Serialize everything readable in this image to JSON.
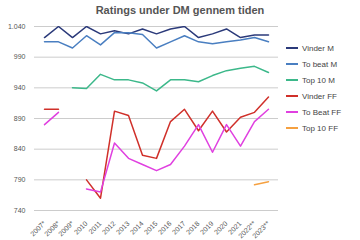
{
  "chart_data": {
    "type": "line",
    "title": "Ratings under DM gennem tiden",
    "categories": [
      "2007*",
      "2008*",
      "2009*",
      "2010",
      "2011",
      "2012",
      "2013",
      "2014",
      "2015",
      "2016",
      "2017",
      "2018",
      "2019",
      "2020",
      "2021",
      "2022**",
      "2023**"
    ],
    "series": [
      {
        "name": "Vinder M",
        "color": "#2b3a7a",
        "values": [
          1022,
          1040,
          1022,
          1040,
          1028,
          1033,
          1028,
          1036,
          1028,
          1036,
          1040,
          1022,
          1028,
          1036,
          1022,
          1026,
          1026
        ]
      },
      {
        "name": "To beat M",
        "color": "#4a7fc1",
        "values": [
          1015,
          1015,
          1005,
          1025,
          1010,
          1030,
          1030,
          1027,
          1005,
          1015,
          1025,
          1015,
          1012,
          1015,
          1018,
          1022,
          1015
        ]
      },
      {
        "name": "Top 10 M",
        "color": "#3cb88a",
        "values": [
          null,
          null,
          940,
          939,
          962,
          953,
          953,
          948,
          935,
          953,
          953,
          950,
          960,
          968,
          972,
          975,
          965
        ]
      },
      {
        "name": "Vinder FF",
        "color": "#d0302a",
        "values": [
          905,
          905,
          null,
          790,
          760,
          902,
          895,
          830,
          825,
          885,
          905,
          870,
          902,
          868,
          892,
          900,
          925
        ]
      },
      {
        "name": "To Beat FF",
        "color": "#e040e0",
        "values": [
          880,
          900,
          null,
          775,
          770,
          850,
          825,
          815,
          805,
          815,
          845,
          880,
          835,
          880,
          845,
          885,
          905
        ]
      },
      {
        "name": "Top 10 FF",
        "color": "#f5a040",
        "values": [
          null,
          null,
          null,
          null,
          null,
          null,
          null,
          null,
          null,
          null,
          null,
          null,
          null,
          null,
          null,
          782,
          787
        ]
      }
    ],
    "ylim": [
      740,
      1040
    ],
    "yticks": [
      740,
      790,
      840,
      890,
      940,
      990,
      {
        "value": 1040,
        "label": "1.040"
      }
    ],
    "grid": true,
    "legend": "right",
    "line_style": "solid"
  }
}
